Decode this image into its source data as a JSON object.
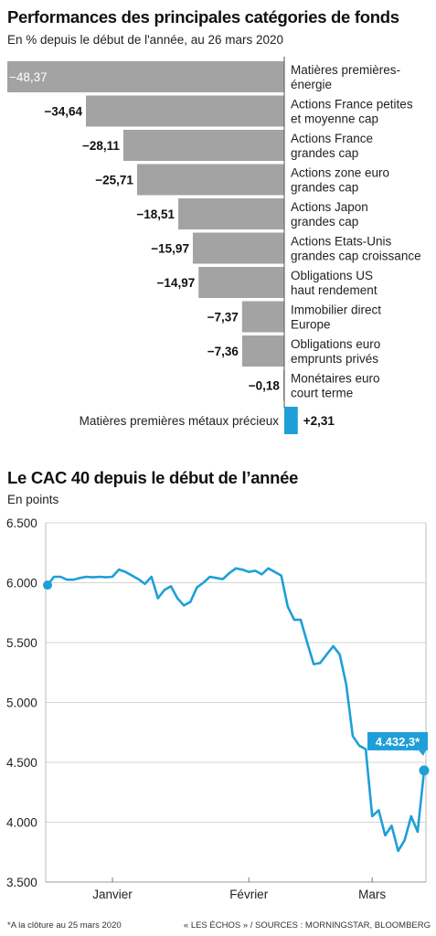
{
  "chart1": {
    "title": "Performances des principales catégories de fonds",
    "subtitle": "En % depuis le début de l'année, au 26 mars 2020",
    "chart_data": {
      "type": "bar",
      "orientation": "horizontal",
      "categories": [
        [
          "Matières premières-",
          "énergie"
        ],
        [
          "Actions France petites",
          "et moyenne cap"
        ],
        [
          "Actions France",
          "grandes cap"
        ],
        [
          "Actions zone euro",
          "grandes cap"
        ],
        [
          "Actions Japon",
          "grandes cap"
        ],
        [
          "Actions Etats-Unis",
          "grandes cap croissance"
        ],
        [
          "Obligations US",
          "haut rendement"
        ],
        [
          "Immobilier direct",
          "Europe"
        ],
        [
          "Obligations euro",
          "emprunts privés"
        ],
        [
          "Monétaires euro",
          "court terme"
        ],
        [
          "Matières premières métaux précieux"
        ]
      ],
      "values": [
        -48.37,
        -34.64,
        -28.11,
        -25.71,
        -18.51,
        -15.97,
        -14.97,
        -7.37,
        -7.36,
        -0.18,
        2.31
      ],
      "value_labels": [
        "−48,37",
        "−34,64",
        "−28,11",
        "−25,71",
        "−18,51",
        "−15,97",
        "−14,97",
        "−7,37",
        "−7,36",
        "−0,18",
        "+2,31"
      ],
      "colors": {
        "negative": "#a3a3a3",
        "positive": "#1e9fd8"
      }
    }
  },
  "chart2": {
    "title": "Le CAC 40 depuis le début de l’année",
    "subtitle": "En points",
    "chart_data": {
      "type": "line",
      "ylim": [
        3500,
        6500
      ],
      "yticks": [
        3500,
        4000,
        4500,
        5000,
        5500,
        6000,
        6500
      ],
      "ytick_labels": [
        "3.500",
        "4.000",
        "4.500",
        "5.000",
        "5.500",
        "6.000",
        "6.500"
      ],
      "xticks": [
        {
          "label": "Janvier",
          "x": 10
        },
        {
          "label": "Février",
          "x": 31
        },
        {
          "label": "Mars",
          "x": 50
        }
      ],
      "xlim": [
        0,
        58
      ],
      "x": [
        0,
        1,
        2,
        3,
        4,
        5,
        6,
        7,
        8,
        9,
        10,
        11,
        12,
        13,
        14,
        15,
        16,
        17,
        18,
        19,
        20,
        21,
        22,
        23,
        24,
        25,
        26,
        27,
        28,
        29,
        30,
        31,
        32,
        33,
        34,
        35,
        36,
        37,
        38,
        39,
        40,
        41,
        42,
        43,
        44,
        45,
        46,
        47,
        48,
        49,
        50,
        51,
        52,
        53,
        54,
        55,
        56,
        57,
        58
      ],
      "values": [
        5980,
        6050,
        6050,
        6025,
        6025,
        6040,
        6050,
        6045,
        6050,
        6045,
        6050,
        6110,
        6090,
        6060,
        6030,
        5990,
        6050,
        5870,
        5940,
        5970,
        5870,
        5810,
        5840,
        5960,
        6000,
        6050,
        6040,
        6030,
        6080,
        6120,
        6110,
        6090,
        6100,
        6070,
        6120,
        6090,
        6060,
        5800,
        5690,
        5690,
        5500,
        5320,
        5330,
        5400,
        5470,
        5400,
        5150,
        4720,
        4640,
        4610,
        4050,
        4100,
        3890,
        3970,
        3760,
        3850,
        4050,
        3920,
        4432
      ],
      "last_value_label": "4.432,3*",
      "line_color": "#1e9fd8"
    }
  },
  "footer": {
    "note": "*A la clôture au 25 mars 2020",
    "source": "« LES ÉCHOS » / SOURCES : MORNINGSTAR, BLOOMBERG"
  }
}
